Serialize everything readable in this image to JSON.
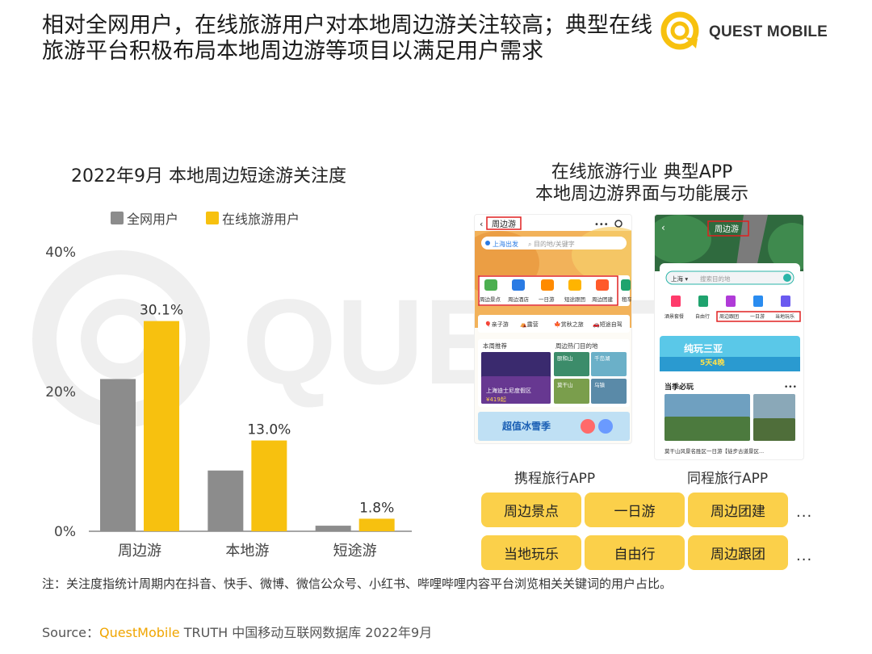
{
  "header": {
    "title_line1": "相对全网用户，在线旅游用户对本地周边游关注较高；典型在线",
    "title_line2": "旅游平台积极布局本地周边游等项目以满足用户需求",
    "logo_text": "QUEST MOBILE"
  },
  "chart_data": {
    "type": "bar",
    "title": "2022年9月 本地周边短途游关注度",
    "categories": [
      "周边游",
      "本地游",
      "短途游"
    ],
    "series": [
      {
        "name": "全网用户",
        "values": [
          21.8,
          8.7,
          0.8
        ],
        "color": "#8c8c8c",
        "labels": [
          "",
          "",
          ""
        ]
      },
      {
        "name": "在线旅游用户",
        "values": [
          30.1,
          13.0,
          1.8
        ],
        "color": "#f7c10f",
        "labels": [
          "30.1%",
          "13.0%",
          "1.8%"
        ]
      }
    ],
    "yticks": [
      "0%",
      "20%",
      "40%"
    ],
    "ylim": [
      0,
      40
    ],
    "legend_position": "top",
    "grid": false
  },
  "right_panel": {
    "title_line1": "在线旅游行业 典型APP",
    "title_line2": "本地周边游界面与功能展示",
    "app1": {
      "name": "携程旅行APP",
      "screen_title": "周边游",
      "location": "上海出发",
      "search_placeholder": "目的地/关键字",
      "icons": [
        "周边景点",
        "周边酒店",
        "一日游",
        "短途跟团",
        "周边团建",
        "租车"
      ],
      "chips": [
        "亲子游",
        "露营",
        "赏秋之旅",
        "短途自驾"
      ],
      "weekly_label": "本周推荐",
      "hot_label": "周边热门目的地",
      "spot1": "颐和山",
      "spot2": "千岛湖",
      "spot3": "莫干山",
      "spot4": "乌镇",
      "promo_caption": "上海迪士尼度假区",
      "price": "¥419起",
      "banner": "超值冰雪季"
    },
    "app2": {
      "name": "同程旅行APP",
      "screen_title": "周边游",
      "city": "上海",
      "search_placeholder": "搜索目的地",
      "icons": [
        "酒景套餐",
        "自由行",
        "周边跟团",
        "一日游",
        "当地玩乐"
      ],
      "banner_main": "纯玩三亚",
      "banner_sub": "5天4晚",
      "section": "当季必玩",
      "caption": "莫干山风景名胜区一日游【徒步古道景区..."
    },
    "tags": [
      "周边景点",
      "一日游",
      "周边团建",
      "当地玩乐",
      "自由行",
      "周边跟团"
    ],
    "more": "..."
  },
  "footer": {
    "note": "注：关注度指统计周期内在抖音、快手、微博、微信公众号、小红书、哔哩哔哩内容平台浏览相关关键词的用户占比。",
    "source_prefix": "Source：",
    "source_brand": "QuestMobile",
    "source_rest": " TRUTH 中国移动互联网数据库 2022年9月"
  }
}
